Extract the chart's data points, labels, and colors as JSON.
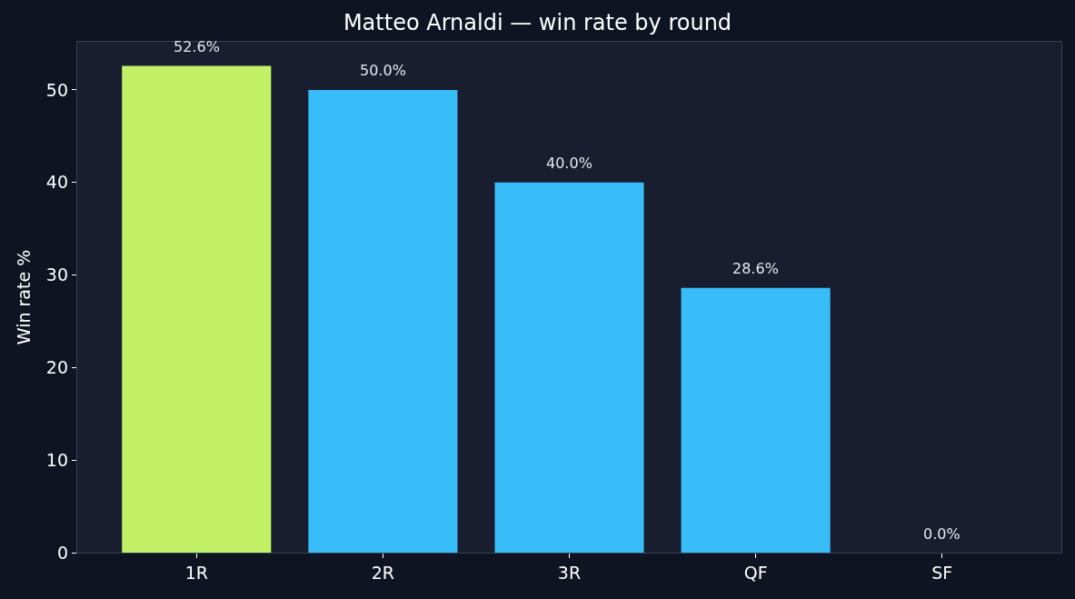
{
  "chart_data": {
    "type": "bar",
    "title": "Matteo Arnaldi — win rate by round",
    "ylabel": "Win rate %",
    "categories": [
      "1R",
      "2R",
      "3R",
      "QF",
      "SF"
    ],
    "values": [
      52.6,
      50.0,
      40.0,
      28.6,
      0.0
    ],
    "colors": [
      "#c2f066",
      "#38bdf8",
      "#38bdf8",
      "#38bdf8",
      "#38bdf8"
    ],
    "value_labels": [
      "52.6%",
      "50.0%",
      "40.0%",
      "28.6%",
      "0.0%"
    ],
    "ylim": [
      0,
      55.2
    ],
    "yticks": [
      0,
      10,
      20,
      30,
      40,
      50
    ],
    "grid": false
  }
}
